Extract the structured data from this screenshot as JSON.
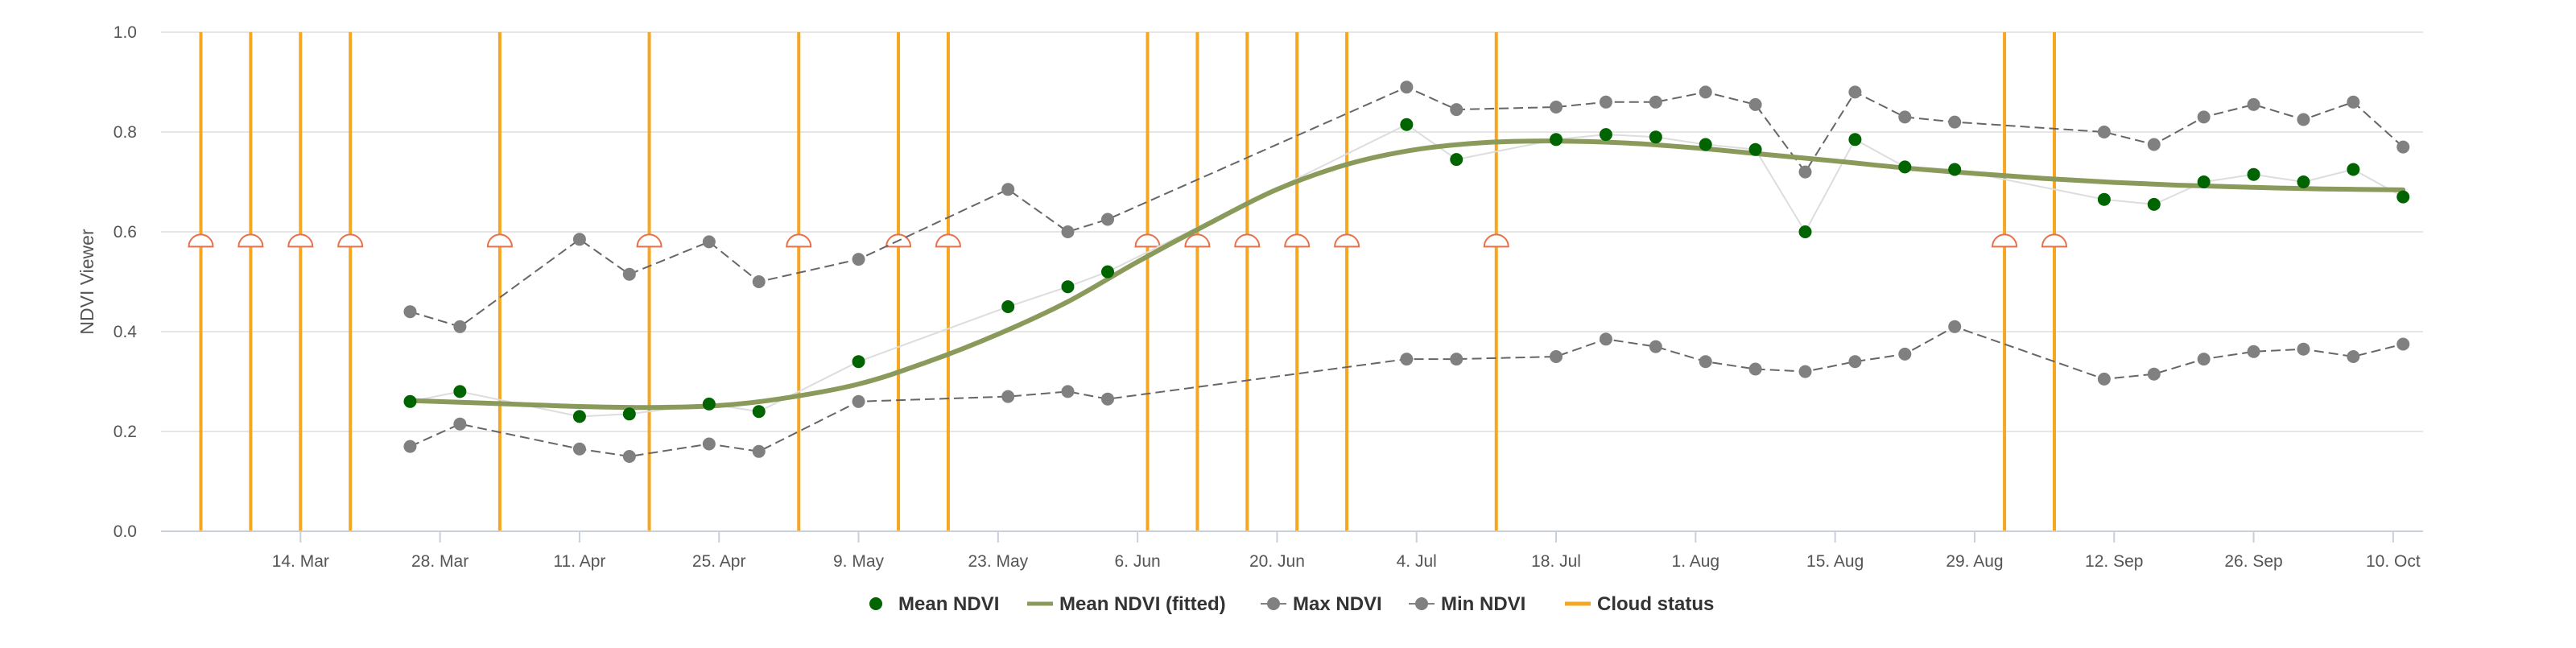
{
  "chart_data": {
    "type": "line",
    "ylabel": "NDVI Viewer",
    "ylim": [
      0,
      1
    ],
    "y_ticks": [
      "0.0",
      "0.2",
      "0.4",
      "0.6",
      "0.8",
      "1.0"
    ],
    "xlim": [
      "2023-02-28",
      "2023-10-13"
    ],
    "x_ticks": [
      {
        "date": "2023-03-14",
        "label": "14. Mar"
      },
      {
        "date": "2023-03-28",
        "label": "28. Mar"
      },
      {
        "date": "2023-04-11",
        "label": "11. Apr"
      },
      {
        "date": "2023-04-25",
        "label": "25. Apr"
      },
      {
        "date": "2023-05-09",
        "label": "9. May"
      },
      {
        "date": "2023-05-23",
        "label": "23. May"
      },
      {
        "date": "2023-06-06",
        "label": "6. Jun"
      },
      {
        "date": "2023-06-20",
        "label": "20. Jun"
      },
      {
        "date": "2023-07-04",
        "label": "4. Jul"
      },
      {
        "date": "2023-07-18",
        "label": "18. Jul"
      },
      {
        "date": "2023-08-01",
        "label": "1. Aug"
      },
      {
        "date": "2023-08-15",
        "label": "15. Aug"
      },
      {
        "date": "2023-08-29",
        "label": "29. Aug"
      },
      {
        "date": "2023-09-12",
        "label": "12. Sep"
      },
      {
        "date": "2023-09-26",
        "label": "26. Sep"
      },
      {
        "date": "2023-10-10",
        "label": "10. Oct"
      }
    ],
    "grid": true,
    "legend_position": "bottom-center",
    "series": [
      {
        "name": "Mean NDVI",
        "kind": "scatter",
        "color": "#006400",
        "points": [
          [
            "2023-03-25",
            0.26
          ],
          [
            "2023-03-30",
            0.28
          ],
          [
            "2023-04-11",
            0.23
          ],
          [
            "2023-04-16",
            0.235
          ],
          [
            "2023-04-24",
            0.255
          ],
          [
            "2023-04-29",
            0.24
          ],
          [
            "2023-05-09",
            0.34
          ],
          [
            "2023-05-24",
            0.45
          ],
          [
            "2023-05-30",
            0.49
          ],
          [
            "2023-06-03",
            0.52
          ],
          [
            "2023-07-03",
            0.815
          ],
          [
            "2023-07-08",
            0.745
          ],
          [
            "2023-07-18",
            0.785
          ],
          [
            "2023-07-23",
            0.795
          ],
          [
            "2023-07-28",
            0.79
          ],
          [
            "2023-08-02",
            0.775
          ],
          [
            "2023-08-07",
            0.765
          ],
          [
            "2023-08-12",
            0.6
          ],
          [
            "2023-08-17",
            0.785
          ],
          [
            "2023-08-22",
            0.73
          ],
          [
            "2023-08-27",
            0.725
          ],
          [
            "2023-09-11",
            0.665
          ],
          [
            "2023-09-16",
            0.655
          ],
          [
            "2023-09-21",
            0.7
          ],
          [
            "2023-09-26",
            0.715
          ],
          [
            "2023-10-01",
            0.7
          ],
          [
            "2023-10-06",
            0.725
          ],
          [
            "2023-10-11",
            0.67
          ]
        ]
      },
      {
        "name": "Mean NDVI (fitted)",
        "kind": "line",
        "color": "#8a9a5b",
        "points": [
          [
            "2023-03-25",
            0.262
          ],
          [
            "2023-04-04",
            0.255
          ],
          [
            "2023-04-11",
            0.25
          ],
          [
            "2023-04-18",
            0.248
          ],
          [
            "2023-04-25",
            0.252
          ],
          [
            "2023-05-01",
            0.265
          ],
          [
            "2023-05-09",
            0.295
          ],
          [
            "2023-05-16",
            0.34
          ],
          [
            "2023-05-23",
            0.395
          ],
          [
            "2023-05-30",
            0.46
          ],
          [
            "2023-06-06",
            0.54
          ],
          [
            "2023-06-13",
            0.615
          ],
          [
            "2023-06-20",
            0.685
          ],
          [
            "2023-06-27",
            0.735
          ],
          [
            "2023-07-04",
            0.765
          ],
          [
            "2023-07-11",
            0.779
          ],
          [
            "2023-07-18",
            0.782
          ],
          [
            "2023-07-25",
            0.778
          ],
          [
            "2023-08-01",
            0.768
          ],
          [
            "2023-08-08",
            0.755
          ],
          [
            "2023-08-15",
            0.742
          ],
          [
            "2023-08-22",
            0.728
          ],
          [
            "2023-08-29",
            0.717
          ],
          [
            "2023-09-05",
            0.707
          ],
          [
            "2023-09-12",
            0.699
          ],
          [
            "2023-09-19",
            0.693
          ],
          [
            "2023-09-26",
            0.689
          ],
          [
            "2023-10-03",
            0.686
          ],
          [
            "2023-10-11",
            0.684
          ]
        ]
      },
      {
        "name": "Max NDVI",
        "kind": "line-markers",
        "color": "#808080",
        "points": [
          [
            "2023-03-25",
            0.44
          ],
          [
            "2023-03-30",
            0.41
          ],
          [
            "2023-04-11",
            0.585
          ],
          [
            "2023-04-16",
            0.515
          ],
          [
            "2023-04-24",
            0.58
          ],
          [
            "2023-04-29",
            0.5
          ],
          [
            "2023-05-09",
            0.545
          ],
          [
            "2023-05-24",
            0.685
          ],
          [
            "2023-05-30",
            0.6
          ],
          [
            "2023-06-03",
            0.625
          ],
          [
            "2023-07-03",
            0.89
          ],
          [
            "2023-07-08",
            0.845
          ],
          [
            "2023-07-18",
            0.85
          ],
          [
            "2023-07-23",
            0.86
          ],
          [
            "2023-07-28",
            0.86
          ],
          [
            "2023-08-02",
            0.88
          ],
          [
            "2023-08-07",
            0.855
          ],
          [
            "2023-08-12",
            0.72
          ],
          [
            "2023-08-17",
            0.88
          ],
          [
            "2023-08-22",
            0.83
          ],
          [
            "2023-08-27",
            0.82
          ],
          [
            "2023-09-11",
            0.8
          ],
          [
            "2023-09-16",
            0.775
          ],
          [
            "2023-09-21",
            0.83
          ],
          [
            "2023-09-26",
            0.855
          ],
          [
            "2023-10-01",
            0.825
          ],
          [
            "2023-10-06",
            0.86
          ],
          [
            "2023-10-11",
            0.77
          ]
        ]
      },
      {
        "name": "Min NDVI",
        "kind": "line-markers",
        "color": "#808080",
        "points": [
          [
            "2023-03-25",
            0.17
          ],
          [
            "2023-03-30",
            0.215
          ],
          [
            "2023-04-11",
            0.165
          ],
          [
            "2023-04-16",
            0.15
          ],
          [
            "2023-04-24",
            0.175
          ],
          [
            "2023-04-29",
            0.16
          ],
          [
            "2023-05-09",
            0.26
          ],
          [
            "2023-05-24",
            0.27
          ],
          [
            "2023-05-30",
            0.28
          ],
          [
            "2023-06-03",
            0.265
          ],
          [
            "2023-07-03",
            0.345
          ],
          [
            "2023-07-08",
            0.345
          ],
          [
            "2023-07-18",
            0.35
          ],
          [
            "2023-07-23",
            0.385
          ],
          [
            "2023-07-28",
            0.37
          ],
          [
            "2023-08-02",
            0.34
          ],
          [
            "2023-08-07",
            0.325
          ],
          [
            "2023-08-12",
            0.32
          ],
          [
            "2023-08-17",
            0.34
          ],
          [
            "2023-08-22",
            0.355
          ],
          [
            "2023-08-27",
            0.41
          ],
          [
            "2023-09-11",
            0.305
          ],
          [
            "2023-09-16",
            0.315
          ],
          [
            "2023-09-21",
            0.345
          ],
          [
            "2023-09-26",
            0.36
          ],
          [
            "2023-10-01",
            0.365
          ],
          [
            "2023-10-06",
            0.35
          ],
          [
            "2023-10-11",
            0.375
          ]
        ]
      },
      {
        "name": "Cloud status",
        "kind": "vertical-lines",
        "color": "#f5a623",
        "marker_color": "#e8704a",
        "marker_y": 0.58,
        "dates": [
          "2023-03-04",
          "2023-03-09",
          "2023-03-14",
          "2023-03-19",
          "2023-04-03",
          "2023-04-18",
          "2023-05-03",
          "2023-05-13",
          "2023-05-18",
          "2023-06-07",
          "2023-06-12",
          "2023-06-17",
          "2023-06-22",
          "2023-06-27",
          "2023-07-12",
          "2023-09-01",
          "2023-09-06"
        ]
      }
    ]
  }
}
